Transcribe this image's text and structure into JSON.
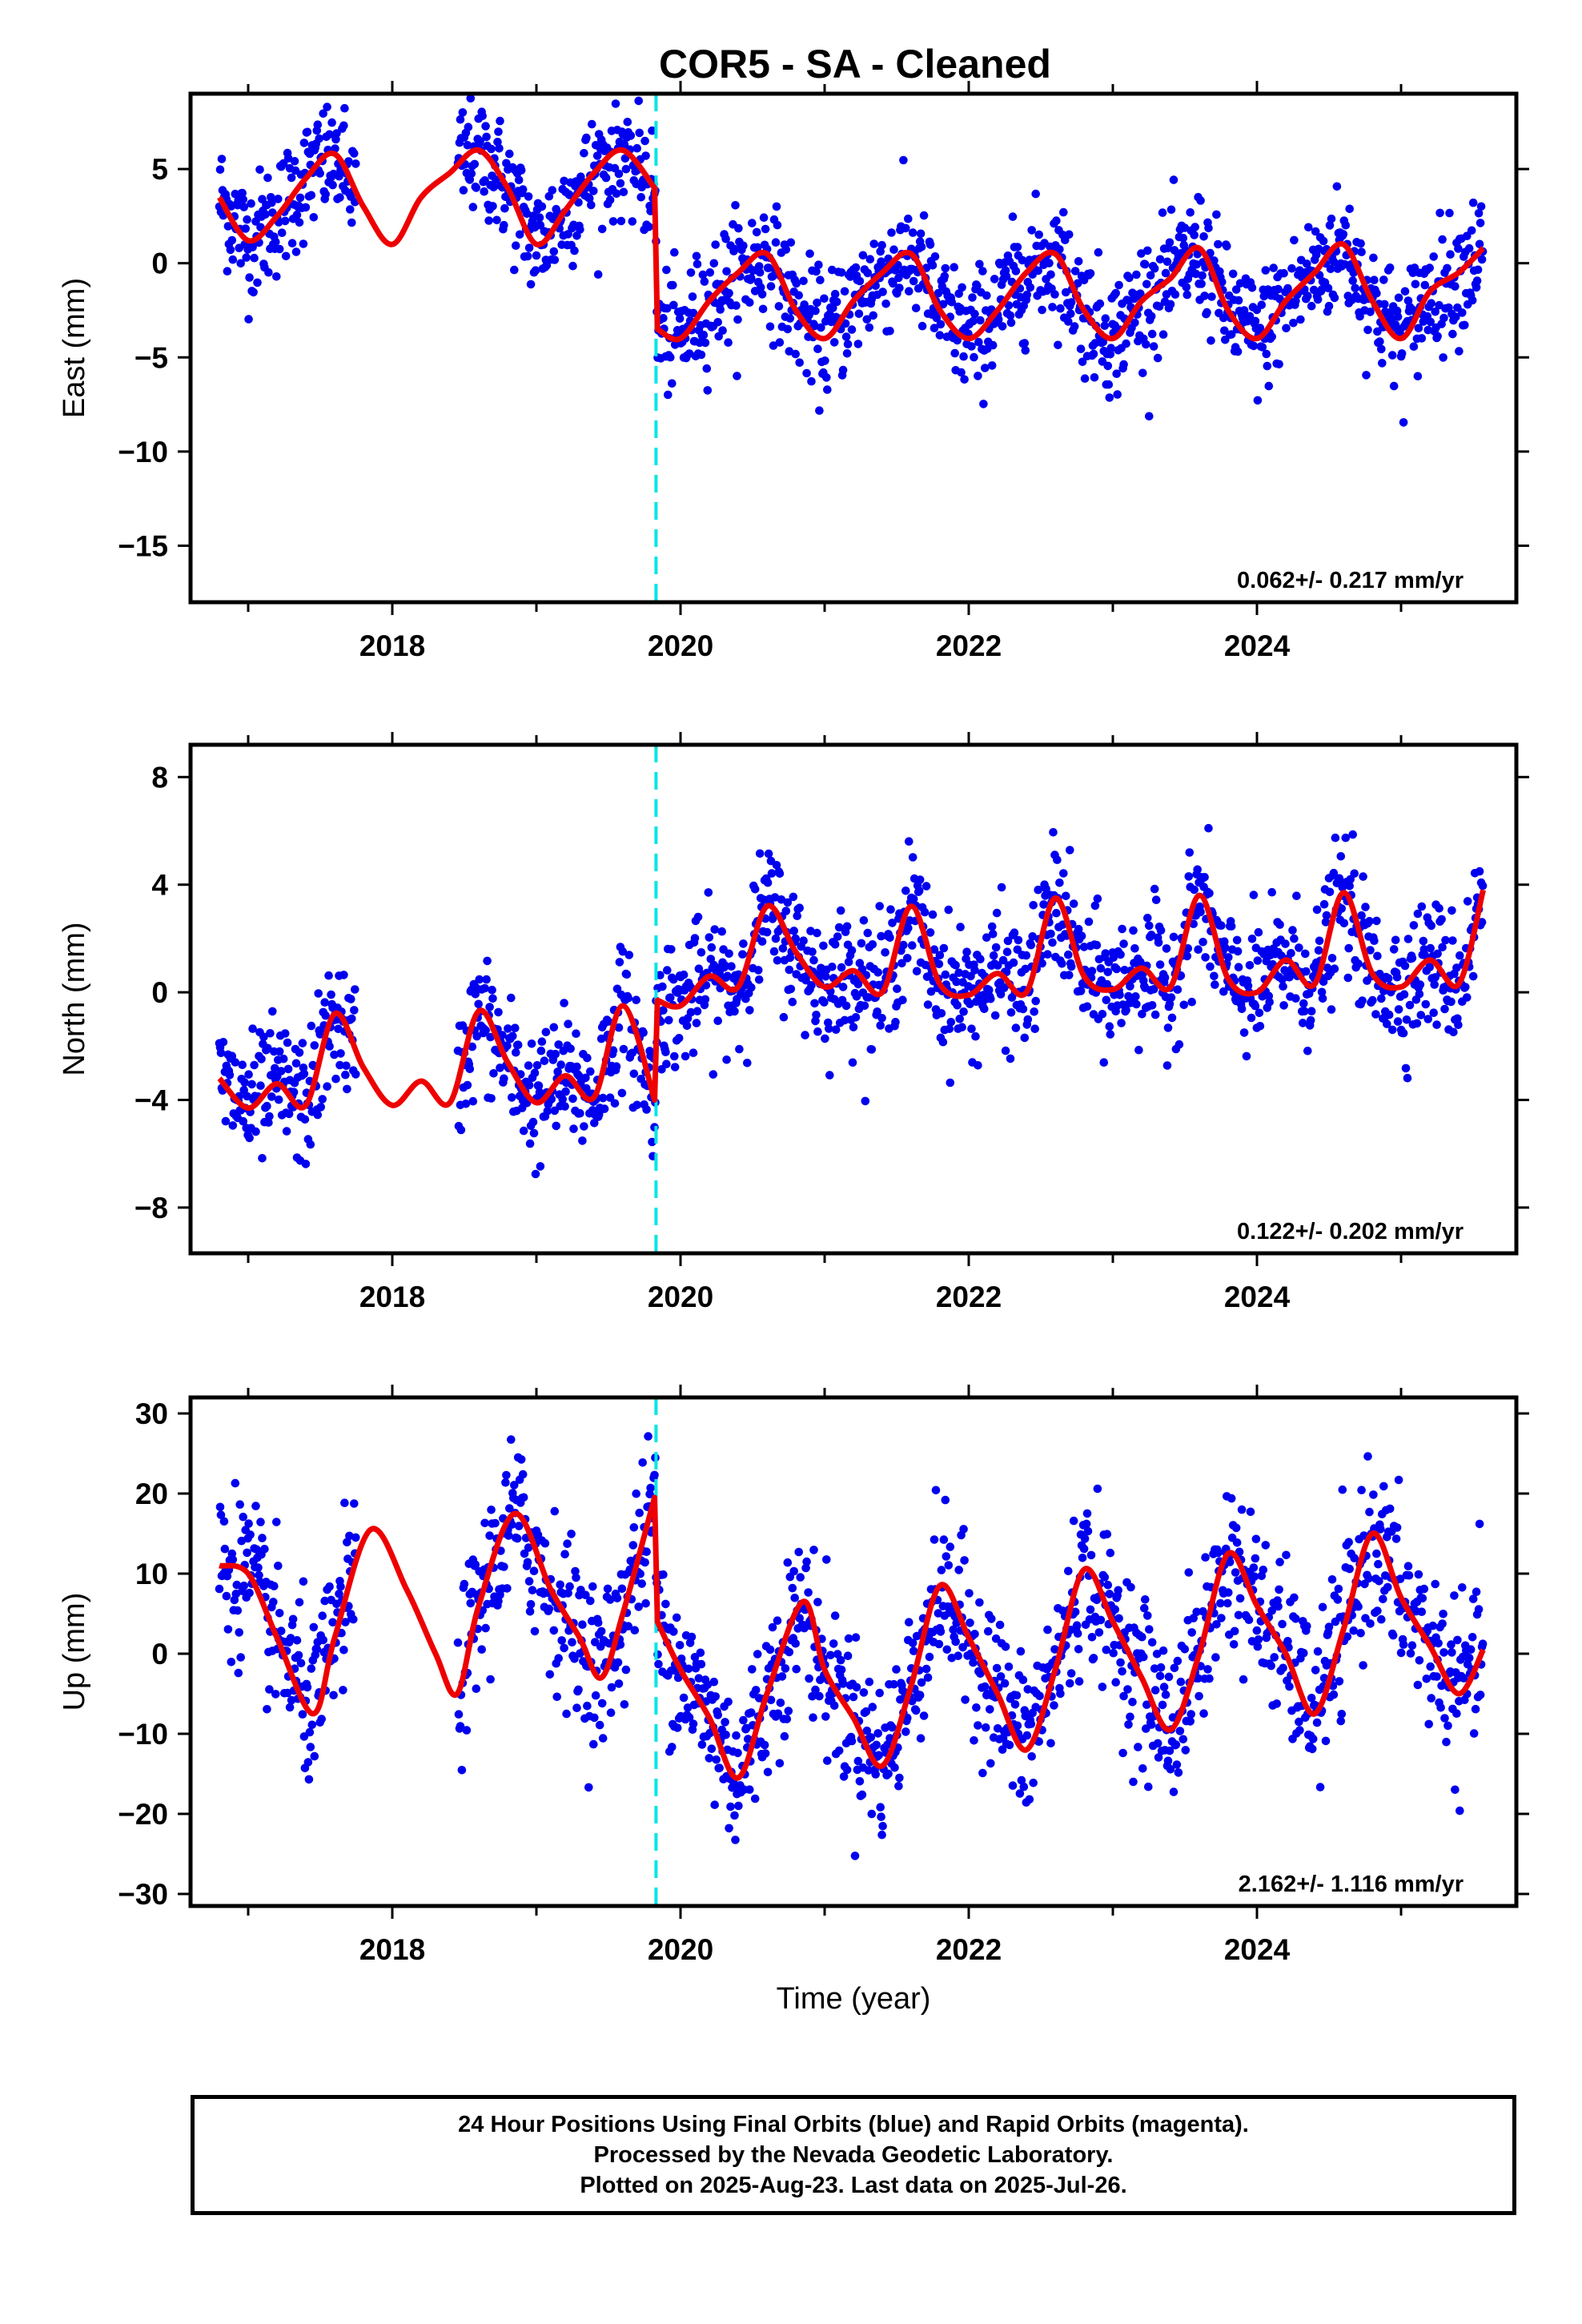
{
  "title": "COR5  - SA - Cleaned",
  "footer": {
    "line1": "24 Hour Positions Using Final Orbits (blue) and Rapid Orbits (magenta).",
    "line2": "Processed by the Nevada Geodetic Laboratory.",
    "line3": "Plotted on 2025-Aug-23. Last data on 2025-Jul-26."
  },
  "colors": {
    "points": "#0000ee",
    "model": "#ee0000",
    "step": "#00e5e5",
    "frame": "#000000"
  },
  "chart_data": [
    {
      "type": "scatter",
      "ylabel": "East (mm)",
      "xlabel": "",
      "xlim": [
        2016.6,
        2025.8
      ],
      "ylim": [
        -18,
        9
      ],
      "xticks": [
        2018,
        2020,
        2022,
        2024
      ],
      "yticks": [
        -15,
        -10,
        -5,
        0,
        5
      ],
      "step_x": 2019.83,
      "rate_label": "0.062+/- 0.217 mm/yr",
      "model_x": [
        2016.8,
        2017.0,
        2017.2,
        2017.4,
        2017.6,
        2017.8,
        2018.0,
        2018.2,
        2018.4,
        2018.6,
        2018.8,
        2019.0,
        2019.2,
        2019.4,
        2019.6,
        2019.82,
        2019.84,
        2020.0,
        2020.2,
        2020.4,
        2020.6,
        2020.8,
        2021.0,
        2021.2,
        2021.4,
        2021.6,
        2021.8,
        2022.0,
        2022.2,
        2022.4,
        2022.6,
        2022.8,
        2023.0,
        2023.2,
        2023.4,
        2023.6,
        2023.8,
        2024.0,
        2024.2,
        2024.4,
        2024.6,
        2024.8,
        2025.0,
        2025.2,
        2025.4,
        2025.57
      ],
      "model_y": [
        3.5,
        1.2,
        2.5,
        4.5,
        5.8,
        3.0,
        1.0,
        3.5,
        4.8,
        6.0,
        4.0,
        1.0,
        2.8,
        4.8,
        6.0,
        4.0,
        -3.5,
        -4.0,
        -2.0,
        -0.5,
        0.5,
        -2.5,
        -4.0,
        -2.0,
        -0.5,
        0.5,
        -2.5,
        -4.0,
        -2.5,
        -0.5,
        0.5,
        -2.5,
        -4.0,
        -2.0,
        -0.8,
        0.8,
        -2.5,
        -4.0,
        -2.0,
        -0.5,
        1.0,
        -2.0,
        -4.0,
        -1.5,
        -0.5,
        0.8
      ],
      "scatter_seeds": {
        "scatter": 1.6
      }
    },
    {
      "type": "scatter",
      "ylabel": "North (mm)",
      "xlabel": "",
      "xlim": [
        2016.6,
        2025.8
      ],
      "ylim": [
        -9.7,
        9.2
      ],
      "xticks": [
        2018,
        2020,
        2022,
        2024
      ],
      "yticks": [
        -8,
        -4,
        0,
        4,
        8
      ],
      "step_x": 2019.83,
      "rate_label": "0.122+/- 0.202 mm/yr",
      "model_x": [
        2016.8,
        2017.0,
        2017.2,
        2017.4,
        2017.6,
        2017.8,
        2018.0,
        2018.2,
        2018.4,
        2018.6,
        2018.8,
        2019.0,
        2019.2,
        2019.4,
        2019.6,
        2019.82,
        2019.84,
        2020.0,
        2020.2,
        2020.4,
        2020.6,
        2020.8,
        2021.0,
        2021.2,
        2021.4,
        2021.6,
        2021.8,
        2022.0,
        2022.2,
        2022.4,
        2022.6,
        2022.8,
        2023.0,
        2023.2,
        2023.4,
        2023.6,
        2023.8,
        2024.0,
        2024.2,
        2024.4,
        2024.6,
        2024.8,
        2025.0,
        2025.2,
        2025.4,
        2025.57
      ],
      "model_y": [
        -3.2,
        -4.3,
        -3.4,
        -4.2,
        -0.8,
        -2.8,
        -4.2,
        -3.3,
        -4.1,
        -0.7,
        -2.6,
        -4.1,
        -3.1,
        -3.9,
        -0.5,
        -4.0,
        -0.3,
        -0.5,
        0.6,
        0.2,
        3.2,
        1.5,
        0.2,
        0.8,
        0.0,
        3.2,
        0.3,
        -0.1,
        0.7,
        0.0,
        3.5,
        0.6,
        0.1,
        0.9,
        0.2,
        3.6,
        0.5,
        0.0,
        1.2,
        0.3,
        3.7,
        0.7,
        0.2,
        1.2,
        0.3,
        3.8
      ],
      "scatter_seeds": {
        "scatter": 1.2
      }
    },
    {
      "type": "scatter",
      "ylabel": "Up (mm)",
      "xlabel": "Time (year)",
      "xlim": [
        2016.6,
        2025.8
      ],
      "ylim": [
        -31.5,
        32
      ],
      "xticks": [
        2018,
        2020,
        2022,
        2024
      ],
      "yticks": [
        -30,
        -20,
        -10,
        0,
        10,
        20,
        30
      ],
      "step_x": 2019.83,
      "rate_label": "2.162+/- 1.116 mm/yr",
      "model_x": [
        2016.8,
        2017.0,
        2017.2,
        2017.45,
        2017.6,
        2017.85,
        2018.1,
        2018.3,
        2018.45,
        2018.6,
        2018.85,
        2019.1,
        2019.3,
        2019.45,
        2019.6,
        2019.82,
        2019.84,
        2020.0,
        2020.2,
        2020.4,
        2020.6,
        2020.85,
        2021.0,
        2021.2,
        2021.4,
        2021.6,
        2021.8,
        2022.0,
        2022.2,
        2022.4,
        2022.6,
        2022.8,
        2023.0,
        2023.2,
        2023.4,
        2023.6,
        2023.8,
        2024.0,
        2024.2,
        2024.4,
        2024.6,
        2024.8,
        2025.0,
        2025.2,
        2025.4,
        2025.57
      ],
      "model_y": [
        11.0,
        10.0,
        2.0,
        -7.5,
        2.0,
        15.5,
        8.0,
        0.0,
        -5.0,
        6.0,
        17.5,
        8.0,
        2.0,
        -3.0,
        5.0,
        19.5,
        4.0,
        -2.0,
        -8.0,
        -15.5,
        -5.0,
        6.5,
        -2.0,
        -8.0,
        -14.0,
        -4.0,
        8.5,
        2.0,
        -5.0,
        -12.0,
        -2.0,
        10.5,
        4.0,
        -3.0,
        -9.5,
        0.0,
        12.5,
        6.0,
        0.0,
        -7.5,
        3.0,
        15.0,
        7.0,
        1.0,
        -5.0,
        0.5
      ],
      "scatter_seeds": {
        "scatter": 5.0
      }
    }
  ]
}
